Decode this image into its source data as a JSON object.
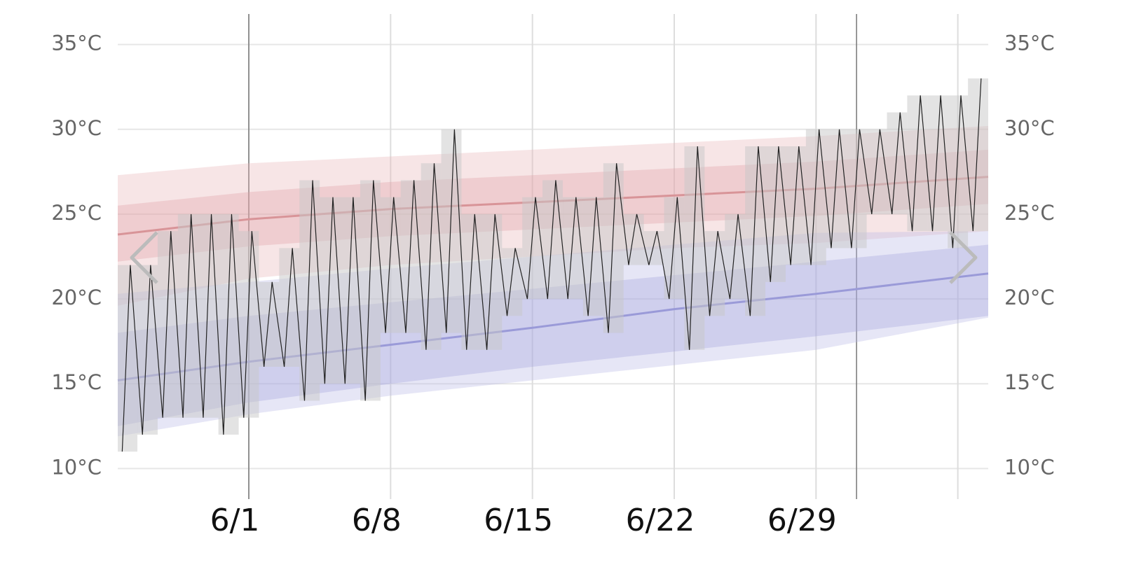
{
  "chart_data": {
    "type": "line",
    "xlim": [
      -6.47,
      36.5
    ],
    "xticks": [
      {
        "value": 0,
        "label": "6/1"
      },
      {
        "value": 7,
        "label": "6/8"
      },
      {
        "value": 14,
        "label": "6/15"
      },
      {
        "value": 21,
        "label": "6/22"
      },
      {
        "value": 28,
        "label": "6/29"
      },
      {
        "value": 35,
        "label": null
      }
    ],
    "month_starts": [
      0,
      30
    ],
    "ylim": [
      8.2,
      36.8
    ],
    "yticks": [
      {
        "value": 10,
        "label": "10°C"
      },
      {
        "value": 15,
        "label": "15°C"
      },
      {
        "value": 20,
        "label": "20°C"
      },
      {
        "value": 25,
        "label": "25°C"
      },
      {
        "value": 30,
        "label": "30°C"
      },
      {
        "value": 35,
        "label": "35°C"
      }
    ],
    "grid": true,
    "daily": {
      "color": "#222",
      "box_color": "#c8c8c8",
      "x": [
        -6,
        -5,
        -4,
        -3,
        -2,
        -1,
        0,
        1,
        2,
        3,
        4,
        5,
        6,
        7,
        8,
        9,
        10,
        11,
        12,
        13,
        14,
        15,
        16,
        17,
        18,
        19,
        20,
        21,
        22,
        23,
        24,
        25,
        26,
        27,
        28,
        29,
        30,
        31,
        32,
        33,
        34,
        35,
        36
      ],
      "max": [
        22,
        22,
        24,
        25,
        25,
        25,
        24,
        21,
        23,
        27,
        26,
        26,
        27,
        26,
        27,
        28,
        30,
        25,
        25,
        23,
        26,
        27,
        26,
        26,
        28,
        25,
        24,
        26,
        29,
        24,
        25,
        29,
        29,
        29,
        30,
        30,
        30,
        30,
        31,
        32,
        32,
        32,
        33
      ],
      "min": [
        11,
        12,
        13,
        13,
        13,
        12,
        13,
        16,
        16,
        14,
        15,
        15,
        14,
        18,
        18,
        17,
        18,
        17,
        17,
        19,
        20,
        20,
        20,
        19,
        18,
        22,
        22,
        20,
        17,
        19,
        20,
        19,
        21,
        22,
        22,
        23,
        23,
        25,
        25,
        24,
        24,
        23,
        24
      ]
    },
    "clim_x": [
      -6.47,
      0,
      7,
      14,
      21,
      28,
      36.5
    ],
    "bands": [
      {
        "color": "#e8b4b8",
        "lower": [
          19.6,
          21.2,
          22,
          22.5,
          23,
          23.3,
          24
        ],
        "upper": [
          27.3,
          28,
          28.4,
          28.8,
          29.2,
          29.6,
          30.2
        ]
      },
      {
        "color": "#dfa0a6",
        "lower": [
          22.2,
          23.1,
          23.7,
          24.1,
          24.5,
          24.9,
          25.6
        ],
        "upper": [
          25.5,
          26.3,
          26.9,
          27.3,
          27.7,
          28.1,
          28.8
        ]
      },
      {
        "color": "#b8b8e6",
        "lower": [
          11.9,
          13.2,
          14.3,
          15.2,
          16.1,
          17,
          18.9
        ],
        "upper": [
          20.3,
          21,
          21.8,
          22.5,
          23.2,
          23.9,
          24
        ]
      },
      {
        "color": "#a2a2dc",
        "lower": [
          12.5,
          13.9,
          15,
          16,
          16.9,
          17.8,
          19
        ],
        "upper": [
          18,
          19,
          19.8,
          20.6,
          21.4,
          22.2,
          23.2
        ]
      }
    ],
    "series": [
      {
        "color": "#d89498",
        "values": [
          23.8,
          24.7,
          25.3,
          25.7,
          26.1,
          26.5,
          27.2
        ]
      },
      {
        "color": "#9a9ad8",
        "values": [
          15.2,
          16.3,
          17.3,
          18.3,
          19.4,
          20.3,
          21.5
        ]
      }
    ]
  }
}
